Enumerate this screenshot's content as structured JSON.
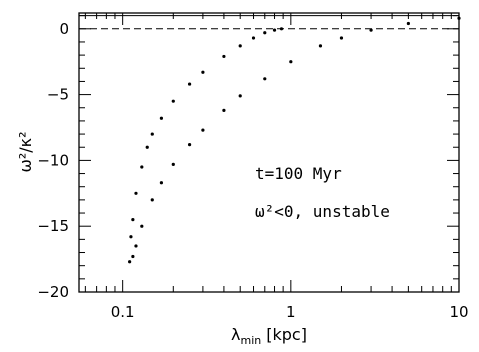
{
  "chart_data": {
    "type": "scatter",
    "xlabel": {
      "main": "λ",
      "sub": "min",
      "unit": "[kpc]"
    },
    "ylabel": "ω²/κ²",
    "xscale": "log",
    "xlim": [
      0.055,
      10
    ],
    "ylim": [
      -20,
      1.2
    ],
    "x_ticks": [
      {
        "value": 0.1,
        "label": "0.1"
      },
      {
        "value": 1,
        "label": "1"
      },
      {
        "value": 10,
        "label": "10"
      }
    ],
    "y_ticks": [
      {
        "value": 0,
        "label": "0"
      },
      {
        "value": -5,
        "label": "−5"
      },
      {
        "value": -10,
        "label": "−10"
      },
      {
        "value": -15,
        "label": "−15"
      },
      {
        "value": -20,
        "label": "−20"
      }
    ],
    "reference_lines": [
      {
        "y": 0,
        "style": "dashed"
      },
      {
        "y": 1,
        "style": "solid"
      }
    ],
    "annotations": [
      {
        "text": "t=100 Myr"
      },
      {
        "text": "ω²<0, unstable"
      }
    ],
    "series": [
      {
        "points": [
          [
            0.112,
            -15.8
          ],
          [
            0.115,
            -14.5
          ],
          [
            0.12,
            -12.5
          ],
          [
            0.13,
            -10.5
          ],
          [
            0.14,
            -9.0
          ],
          [
            0.15,
            -8.0
          ],
          [
            0.17,
            -6.8
          ],
          [
            0.2,
            -5.5
          ],
          [
            0.25,
            -4.2
          ],
          [
            0.3,
            -3.3
          ],
          [
            0.4,
            -2.1
          ],
          [
            0.5,
            -1.3
          ],
          [
            0.6,
            -0.7
          ],
          [
            0.7,
            -0.3
          ],
          [
            0.8,
            -0.1
          ],
          [
            0.88,
            0.0
          ]
        ]
      },
      {
        "points": [
          [
            0.11,
            -17.7
          ],
          [
            0.115,
            -17.3
          ],
          [
            0.12,
            -16.5
          ],
          [
            0.13,
            -15.0
          ],
          [
            0.15,
            -13.0
          ],
          [
            0.17,
            -11.7
          ],
          [
            0.2,
            -10.3
          ],
          [
            0.25,
            -8.8
          ],
          [
            0.3,
            -7.7
          ],
          [
            0.4,
            -6.2
          ],
          [
            0.5,
            -5.1
          ],
          [
            0.7,
            -3.8
          ],
          [
            1.0,
            -2.5
          ],
          [
            1.5,
            -1.3
          ],
          [
            2.0,
            -0.7
          ],
          [
            3.0,
            -0.1
          ],
          [
            5.0,
            0.4
          ],
          [
            10.0,
            0.8
          ]
        ]
      }
    ]
  }
}
